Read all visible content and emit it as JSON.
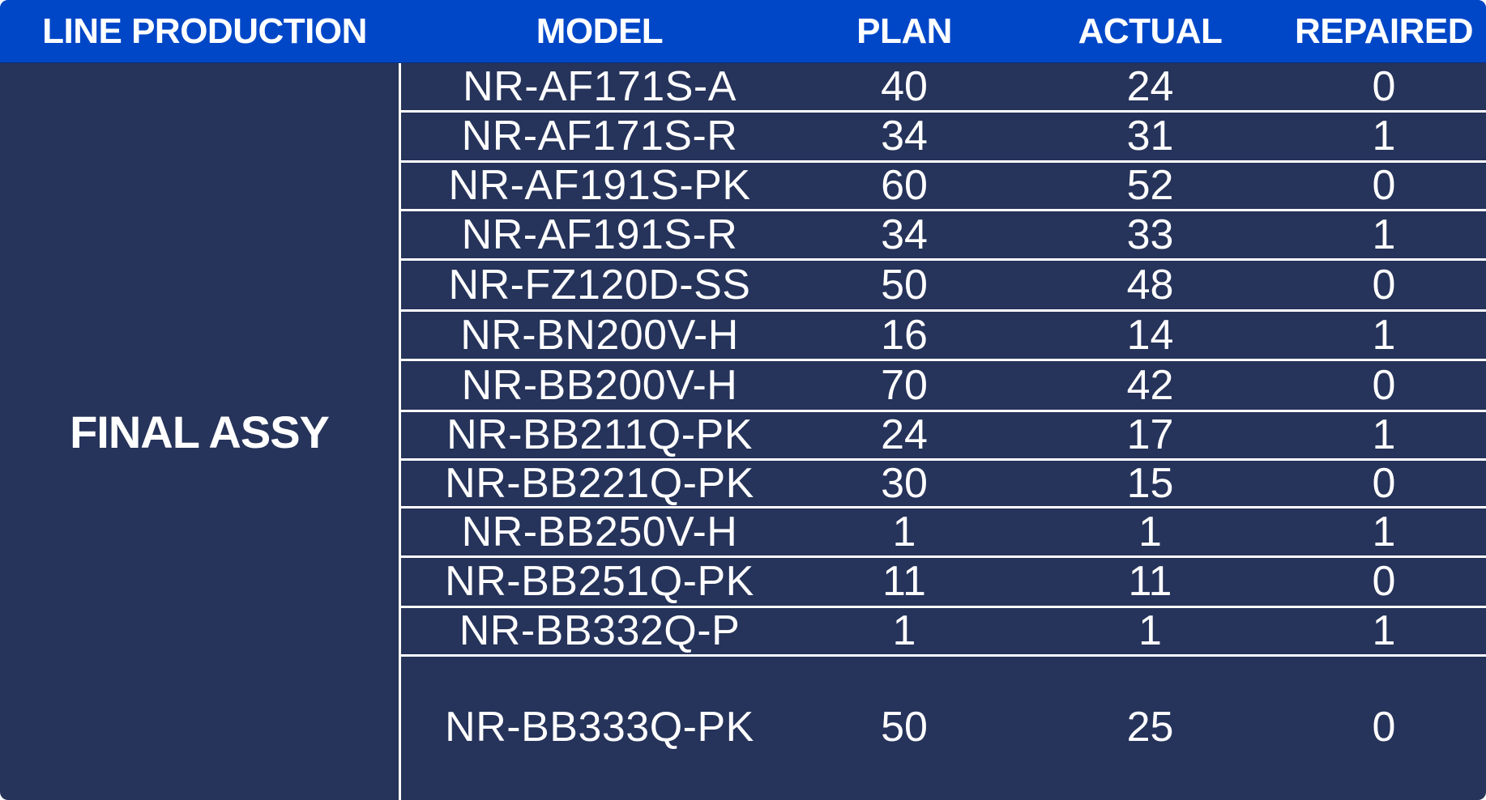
{
  "header": {
    "line_production": "LINE PRODUCTION",
    "model": "MODEL",
    "plan": "PLAN",
    "actual": "ACTUAL",
    "repaired": "REPAIRED"
  },
  "line_name": "FINAL ASSY",
  "rows": [
    {
      "model": "NR-AF171S-A",
      "plan": "40",
      "actual": "24",
      "repaired": "0"
    },
    {
      "model": "NR-AF171S-R",
      "plan": "34",
      "actual": "31",
      "repaired": "1"
    },
    {
      "model": "NR-AF191S-PK",
      "plan": "60",
      "actual": "52",
      "repaired": "0"
    },
    {
      "model": "NR-AF191S-R",
      "plan": "34",
      "actual": "33",
      "repaired": "1"
    },
    {
      "model": "NR-FZ120D-SS",
      "plan": "50",
      "actual": "48",
      "repaired": "0"
    },
    {
      "model": "NR-BN200V-H",
      "plan": "16",
      "actual": "14",
      "repaired": "1"
    },
    {
      "model": "NR-BB200V-H",
      "plan": "70",
      "actual": "42",
      "repaired": "0"
    },
    {
      "model": "NR-BB211Q-PK",
      "plan": "24",
      "actual": "17",
      "repaired": "1"
    },
    {
      "model": "NR-BB221Q-PK",
      "plan": "30",
      "actual": "15",
      "repaired": "0"
    },
    {
      "model": "NR-BB250V-H",
      "plan": "1",
      "actual": "1",
      "repaired": "1"
    },
    {
      "model": "NR-BB251Q-PK",
      "plan": "11",
      "actual": "11",
      "repaired": "0"
    },
    {
      "model": "NR-BB332Q-P",
      "plan": "1",
      "actual": "1",
      "repaired": "1"
    },
    {
      "model": "NR-BB333Q-PK",
      "plan": "50",
      "actual": "25",
      "repaired": "0"
    }
  ],
  "colors": {
    "header_background": "#0047c8",
    "body_background": "#26335a",
    "text": "#ffffff",
    "divider": "#ffffff"
  }
}
